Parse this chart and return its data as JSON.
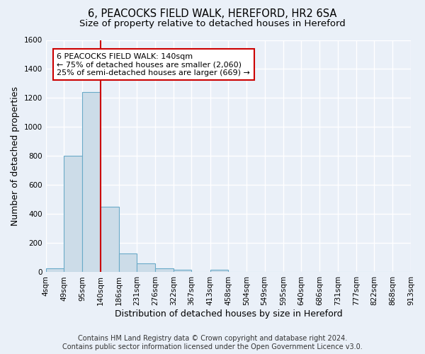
{
  "title": "6, PEACOCKS FIELD WALK, HEREFORD, HR2 6SA",
  "subtitle": "Size of property relative to detached houses in Hereford",
  "xlabel": "Distribution of detached houses by size in Hereford",
  "ylabel": "Number of detached properties",
  "bin_edges": [
    4,
    49,
    95,
    140,
    186,
    231,
    276,
    322,
    367,
    413,
    458,
    504,
    549,
    595,
    640,
    686,
    731,
    777,
    822,
    868,
    913
  ],
  "bar_heights": [
    25,
    800,
    1240,
    450,
    130,
    60,
    25,
    15,
    0,
    15,
    0,
    0,
    0,
    0,
    0,
    0,
    0,
    0,
    0,
    0
  ],
  "bar_color": "#ccdce8",
  "bar_edge_color": "#6aaac8",
  "red_line_x": 140,
  "ylim": [
    0,
    1600
  ],
  "yticks": [
    0,
    200,
    400,
    600,
    800,
    1000,
    1200,
    1400,
    1600
  ],
  "annotation_line1": "6 PEACOCKS FIELD WALK: 140sqm",
  "annotation_line2": "← 75% of detached houses are smaller (2,060)",
  "annotation_line3": "25% of semi-detached houses are larger (669) →",
  "annotation_box_color": "#ffffff",
  "annotation_box_edge_color": "#cc0000",
  "footer_line1": "Contains HM Land Registry data © Crown copyright and database right 2024.",
  "footer_line2": "Contains public sector information licensed under the Open Government Licence v3.0.",
  "background_color": "#eaf0f8",
  "grid_color": "#ffffff",
  "title_fontsize": 10.5,
  "subtitle_fontsize": 9.5,
  "axis_label_fontsize": 9,
  "tick_fontsize": 7.5,
  "annotation_fontsize": 8,
  "footer_fontsize": 7
}
